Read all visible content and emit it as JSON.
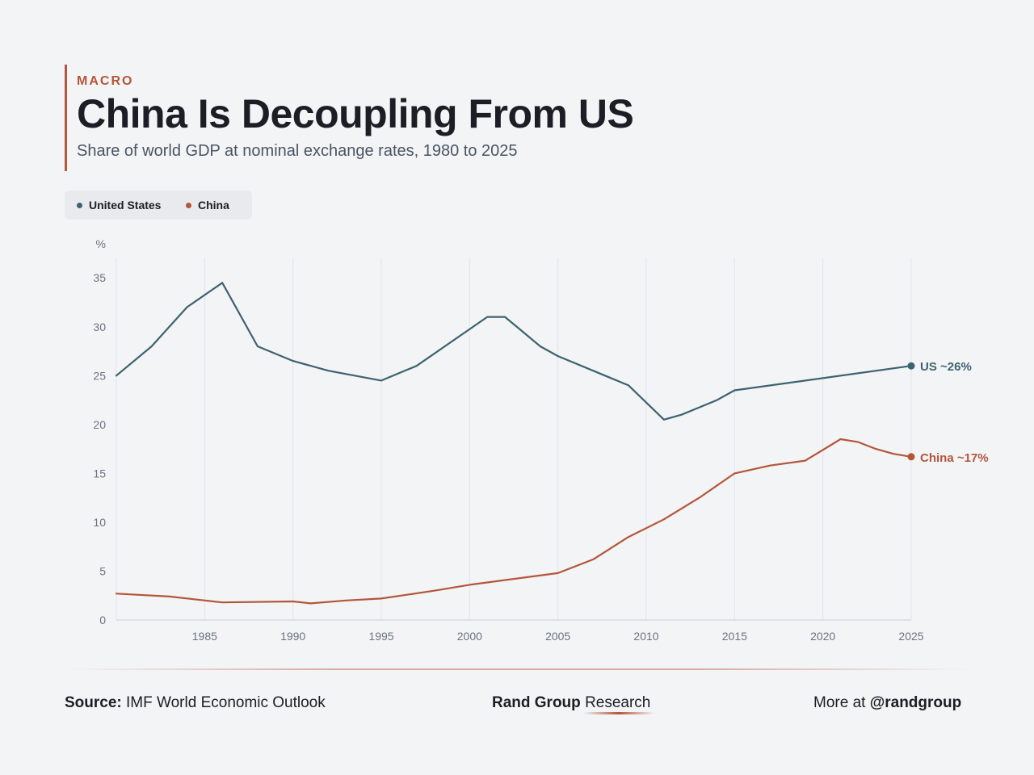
{
  "header": {
    "kicker": "MACRO",
    "title": "China Is Decoupling From US",
    "subtitle": "Share of world GDP at nominal exchange rates, 1980 to 2025"
  },
  "legend": {
    "items": [
      {
        "label": "United States",
        "color": "#3d6270"
      },
      {
        "label": "China",
        "color": "#b4563a"
      }
    ]
  },
  "chart_data": {
    "type": "line",
    "ylabel": "%",
    "xlim": [
      1980,
      2025
    ],
    "ylim": [
      0,
      37
    ],
    "x_ticks": [
      1985,
      1990,
      1995,
      2000,
      2005,
      2010,
      2015,
      2020,
      2025
    ],
    "y_ticks": [
      0,
      5,
      10,
      15,
      20,
      25,
      30,
      35
    ],
    "grid": "vertical",
    "series": [
      {
        "name": "United States",
        "color": "#3d6270",
        "end_label": "US ~26%",
        "x": [
          1980,
          1982,
          1984,
          1986,
          1988,
          1990,
          1992,
          1995,
          1997,
          2001,
          2002,
          2004,
          2005,
          2009,
          2011,
          2012,
          2014,
          2015,
          2025
        ],
        "y": [
          25.0,
          28.0,
          32.0,
          34.5,
          28.0,
          26.5,
          25.5,
          24.5,
          26.0,
          31.0,
          31.0,
          28.0,
          27.0,
          24.0,
          20.5,
          21.0,
          22.5,
          23.5,
          26.0
        ]
      },
      {
        "name": "China",
        "color": "#b4563a",
        "end_label": "China ~17%",
        "x": [
          1980,
          1983,
          1986,
          1990,
          1991,
          1993,
          1995,
          1998,
          2000,
          2005,
          2007,
          2009,
          2011,
          2013,
          2015,
          2017,
          2019,
          2021,
          2022,
          2023,
          2024,
          2025
        ],
        "y": [
          2.7,
          2.4,
          1.8,
          1.9,
          1.7,
          2.0,
          2.2,
          3.0,
          3.6,
          4.8,
          6.2,
          8.5,
          10.3,
          12.5,
          15.0,
          15.8,
          16.3,
          18.5,
          18.2,
          17.5,
          17.0,
          16.7
        ]
      }
    ]
  },
  "footer": {
    "source_label": "Source:",
    "source_text": "IMF World Economic Outlook",
    "brand_bold": "Rand Group",
    "brand_light": "Research",
    "more_text": "More at",
    "handle": "@randgroup"
  }
}
